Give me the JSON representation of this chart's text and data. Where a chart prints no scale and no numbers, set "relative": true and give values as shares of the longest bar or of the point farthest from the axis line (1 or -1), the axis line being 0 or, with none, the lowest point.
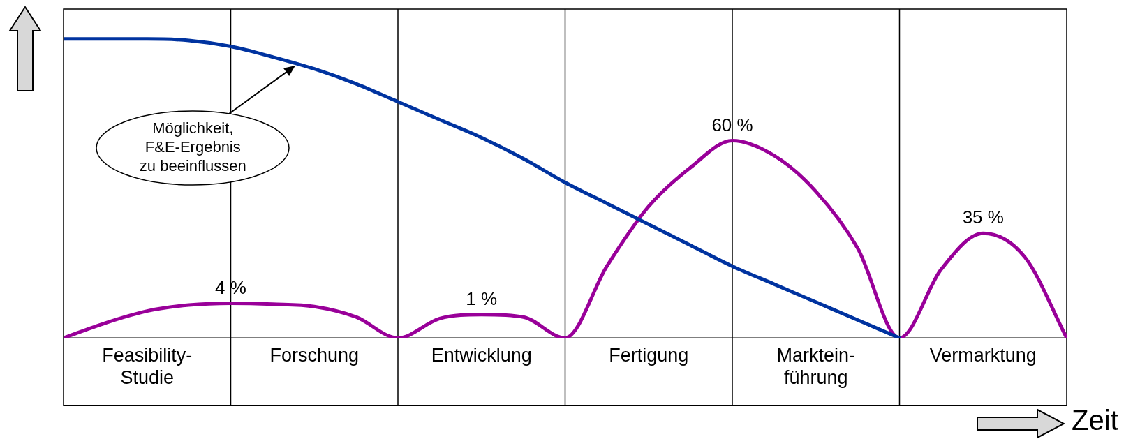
{
  "chart_data": {
    "type": "line",
    "relative": true,
    "xlabel": "Zeit",
    "categories": [
      null,
      null,
      "Feasibility-\nStudie",
      null,
      null,
      null,
      "Forschung",
      null,
      null,
      null,
      "Entwicklung",
      null,
      null,
      null,
      "Fertigung",
      null,
      null,
      null,
      "Marktein-\nführung",
      null,
      null,
      null,
      "Vermarktung",
      null,
      null
    ],
    "series": [
      {
        "color": "#0033a0",
        "values": [
          1.0,
          1.0,
          1.0,
          0.995,
          0.975,
          0.94,
          0.9,
          0.85,
          0.79,
          0.73,
          0.67,
          0.6,
          0.52,
          0.45,
          0.38,
          0.31,
          0.24,
          0.18,
          0.12,
          0.06,
          0.0,
          null,
          null,
          null,
          null
        ]
      },
      {
        "color": "#990099",
        "values": [
          0,
          0.05,
          0.09,
          0.11,
          0.116,
          0.113,
          0.105,
          0.07,
          0,
          0.065,
          0.078,
          0.07,
          0,
          0.24,
          0.44,
          0.57,
          0.66,
          0.61,
          0.49,
          0.3,
          0,
          0.23,
          0.35,
          0.27,
          0
        ]
      }
    ],
    "annotations": [
      "Möglichkeit,\nF&E-Ergebnis\nzu beeinflussen",
      "4 %",
      "1 %",
      "60 %",
      "35 %"
    ],
    "legend": false,
    "marker": "none",
    "line_style": "solid",
    "grid": "x"
  }
}
